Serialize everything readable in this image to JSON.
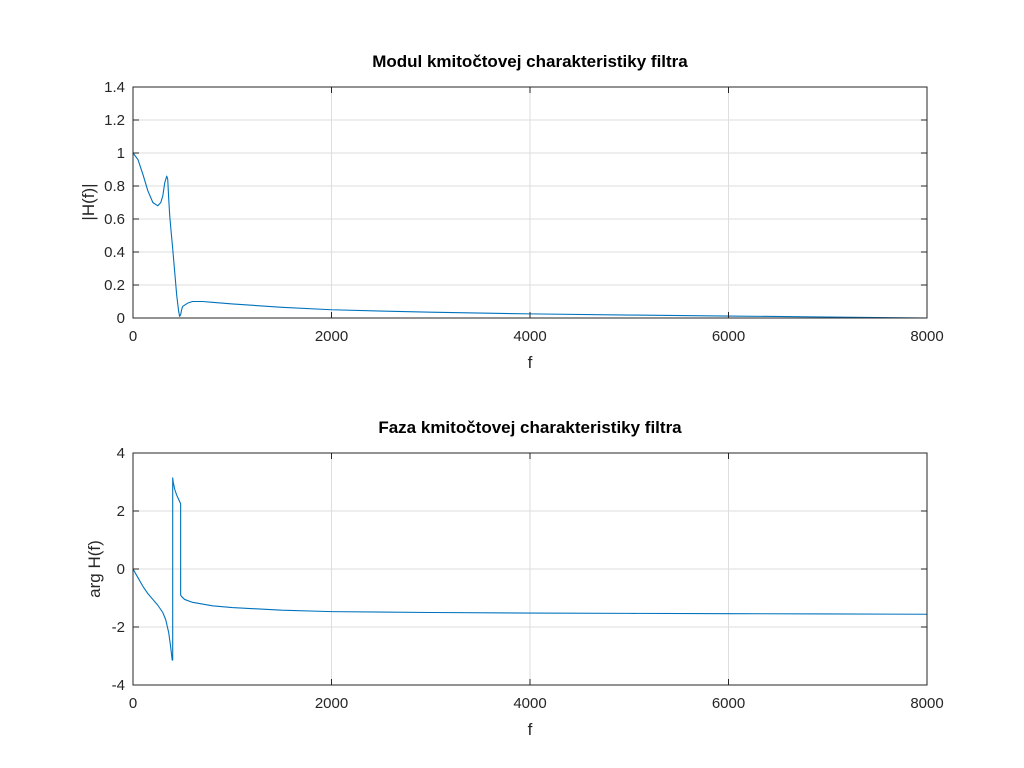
{
  "chart_data": [
    {
      "type": "line",
      "title": "Modul kmitočtovej charakteristiky filtra",
      "xlabel": "f",
      "ylabel": "|H(f)|",
      "xlim": [
        0,
        8000
      ],
      "ylim": [
        0,
        1.4
      ],
      "xticks": [
        0,
        2000,
        4000,
        6000,
        8000
      ],
      "yticks": [
        0,
        0.2,
        0.4,
        0.6,
        0.8,
        1,
        1.2,
        1.4
      ],
      "xtick_labels": [
        "0",
        "2000",
        "4000",
        "6000",
        "8000"
      ],
      "ytick_labels": [
        "0",
        "0.2",
        "0.4",
        "0.6",
        "0.8",
        "1",
        "1.2",
        "1.4"
      ],
      "grid": true,
      "color": "#0072bd",
      "series": [
        {
          "x": [
            0,
            50,
            100,
            150,
            200,
            250,
            280,
            300,
            320,
            340,
            350,
            360,
            370,
            380,
            400,
            420,
            440,
            460,
            470,
            480,
            490,
            500,
            550,
            600,
            700,
            800,
            1000,
            1500,
            2000,
            2500,
            3000,
            4000,
            5000,
            6000,
            7000,
            8000
          ],
          "y": [
            1.0,
            0.96,
            0.87,
            0.77,
            0.7,
            0.68,
            0.7,
            0.74,
            0.82,
            0.86,
            0.84,
            0.72,
            0.62,
            0.55,
            0.42,
            0.28,
            0.14,
            0.04,
            0.01,
            0.02,
            0.05,
            0.07,
            0.09,
            0.1,
            0.1,
            0.095,
            0.085,
            0.065,
            0.05,
            0.042,
            0.035,
            0.025,
            0.018,
            0.012,
            0.006,
            0.0
          ]
        }
      ]
    },
    {
      "type": "line",
      "title": "Faza kmitočtovej charakteristiky filtra",
      "xlabel": "f",
      "ylabel": "arg H(f)",
      "xlim": [
        0,
        8000
      ],
      "ylim": [
        -4,
        4
      ],
      "xticks": [
        0,
        2000,
        4000,
        6000,
        8000
      ],
      "yticks": [
        -4,
        -2,
        0,
        2,
        4
      ],
      "xtick_labels": [
        "0",
        "2000",
        "4000",
        "6000",
        "8000"
      ],
      "ytick_labels": [
        "-4",
        "-2",
        "0",
        "2",
        "4"
      ],
      "grid": true,
      "color": "#0072bd",
      "series": [
        {
          "x": [
            0,
            50,
            100,
            150,
            200,
            250,
            300,
            330,
            360,
            380,
            395,
            400,
            400,
            405,
            420,
            440,
            460,
            480,
            480,
            490,
            520,
            600,
            800,
            1000,
            1500,
            2000,
            3000,
            4000,
            5000,
            6000,
            7000,
            8000
          ],
          "y": [
            0.0,
            -0.3,
            -0.6,
            -0.85,
            -1.05,
            -1.25,
            -1.5,
            -1.75,
            -2.2,
            -2.7,
            -3.14,
            -3.14,
            3.14,
            3.0,
            2.75,
            2.55,
            2.4,
            2.25,
            -0.9,
            -0.95,
            -1.05,
            -1.15,
            -1.27,
            -1.33,
            -1.42,
            -1.47,
            -1.5,
            -1.52,
            -1.53,
            -1.54,
            -1.55,
            -1.56
          ]
        }
      ]
    }
  ]
}
